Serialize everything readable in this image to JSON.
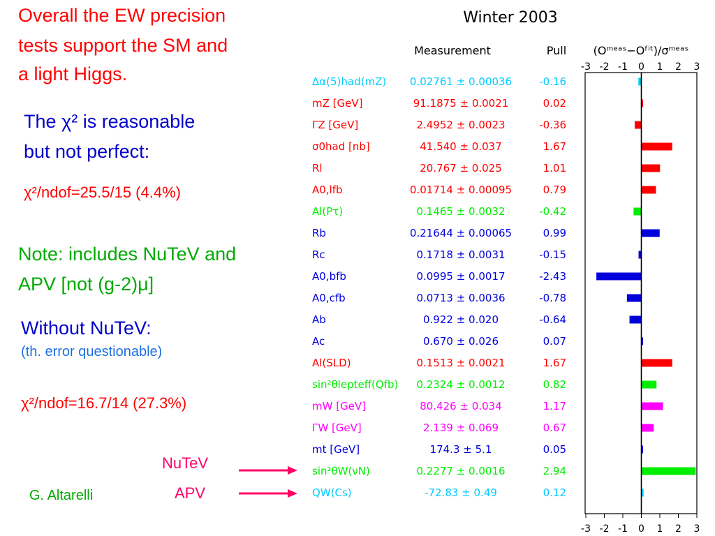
{
  "left": {
    "headline": [
      "Overall the EW precision",
      "tests support the SM and",
      "a light Higgs."
    ],
    "chi2_line1": "The χ² is reasonable",
    "chi2_line2": "but not perfect:",
    "chi2_full": "χ²/ndof=25.5/15 (4.4%)",
    "note_line1": "Note: includes NuTeV and",
    "note_line2": "APV [not (g-2)μ]",
    "without": "Without NuTeV:",
    "th_error": "(th. error questionable)",
    "chi2_without": "χ²/ndof=16.7/14 (27.3%)",
    "nutev_label": "NuTeV",
    "apv_label": "APV",
    "author": "G. Altarelli"
  },
  "colors": {
    "red": "#ff0000",
    "green": "#00aa00",
    "blue_text": "#0000cc",
    "blue_light": "#1f6fe0",
    "arrow": "#ff0066",
    "cyan": "#00ccff",
    "bright_green": "#00ee00",
    "magenta": "#ff00ff",
    "dark_blue": "#0000dd"
  },
  "chart_data": {
    "type": "bar",
    "title": "Winter 2003",
    "headers": {
      "measurement": "Measurement",
      "pull": "Pull",
      "axis": "(Oᵐᵉᵃˢ−Oᶠⁱᵗ)/σᵐᵉᵃˢ"
    },
    "xlim": [
      -3,
      3
    ],
    "xticks": [
      "-3",
      "-2",
      "-1",
      "0",
      "1",
      "2",
      "3"
    ],
    "rows": [
      {
        "name": "Δα(5)had(mZ)",
        "measurement": "0.02761 ± 0.00036",
        "pull": -0.16,
        "pull_label": "-0.16",
        "color": "#00ccff"
      },
      {
        "name": "mZ [GeV]",
        "measurement": "91.1875 ± 0.0021",
        "pull": 0.02,
        "pull_label": "0.02",
        "color": "#ff0000"
      },
      {
        "name": "ΓZ [GeV]",
        "measurement": "2.4952 ± 0.0023",
        "pull": -0.36,
        "pull_label": "-0.36",
        "color": "#ff0000"
      },
      {
        "name": "σ0had [nb]",
        "measurement": "41.540 ± 0.037",
        "pull": 1.67,
        "pull_label": "1.67",
        "color": "#ff0000"
      },
      {
        "name": "Rl",
        "measurement": "20.767 ± 0.025",
        "pull": 1.01,
        "pull_label": "1.01",
        "color": "#ff0000"
      },
      {
        "name": "A0,lfb",
        "measurement": "0.01714 ± 0.00095",
        "pull": 0.79,
        "pull_label": "0.79",
        "color": "#ff0000"
      },
      {
        "name": "Al(Pτ)",
        "measurement": "0.1465 ± 0.0032",
        "pull": -0.42,
        "pull_label": "-0.42",
        "color": "#00ee00"
      },
      {
        "name": "Rb",
        "measurement": "0.21644 ± 0.00065",
        "pull": 0.99,
        "pull_label": "0.99",
        "color": "#0000dd"
      },
      {
        "name": "Rc",
        "measurement": "0.1718 ± 0.0031",
        "pull": -0.15,
        "pull_label": "-0.15",
        "color": "#0000dd"
      },
      {
        "name": "A0,bfb",
        "measurement": "0.0995 ± 0.0017",
        "pull": -2.43,
        "pull_label": "-2.43",
        "color": "#0000dd"
      },
      {
        "name": "A0,cfb",
        "measurement": "0.0713 ± 0.0036",
        "pull": -0.78,
        "pull_label": "-0.78",
        "color": "#0000dd"
      },
      {
        "name": "Ab",
        "measurement": "0.922 ± 0.020",
        "pull": -0.64,
        "pull_label": "-0.64",
        "color": "#0000dd"
      },
      {
        "name": "Ac",
        "measurement": "0.670 ± 0.026",
        "pull": 0.07,
        "pull_label": "0.07",
        "color": "#0000dd"
      },
      {
        "name": "Al(SLD)",
        "measurement": "0.1513 ± 0.0021",
        "pull": 1.67,
        "pull_label": "1.67",
        "color": "#ff0000"
      },
      {
        "name": "sin²θlepteff(Qfb)",
        "measurement": "0.2324 ± 0.0012",
        "pull": 0.82,
        "pull_label": "0.82",
        "color": "#00ee00"
      },
      {
        "name": "mW [GeV]",
        "measurement": "80.426 ± 0.034",
        "pull": 1.17,
        "pull_label": "1.17",
        "color": "#ff00ff"
      },
      {
        "name": "ΓW [GeV]",
        "measurement": "2.139 ± 0.069",
        "pull": 0.67,
        "pull_label": "0.67",
        "color": "#ff00ff"
      },
      {
        "name": "mt [GeV]",
        "measurement": "174.3 ± 5.1",
        "pull": 0.05,
        "pull_label": "0.05",
        "color": "#0000dd"
      },
      {
        "name": "sin²θW(νN)",
        "measurement": "0.2277 ± 0.0016",
        "pull": 2.94,
        "pull_label": "2.94",
        "color": "#00ee00"
      },
      {
        "name": "QW(Cs)",
        "measurement": "-72.83 ± 0.49",
        "pull": 0.12,
        "pull_label": "0.12",
        "color": "#00ccff"
      }
    ]
  }
}
